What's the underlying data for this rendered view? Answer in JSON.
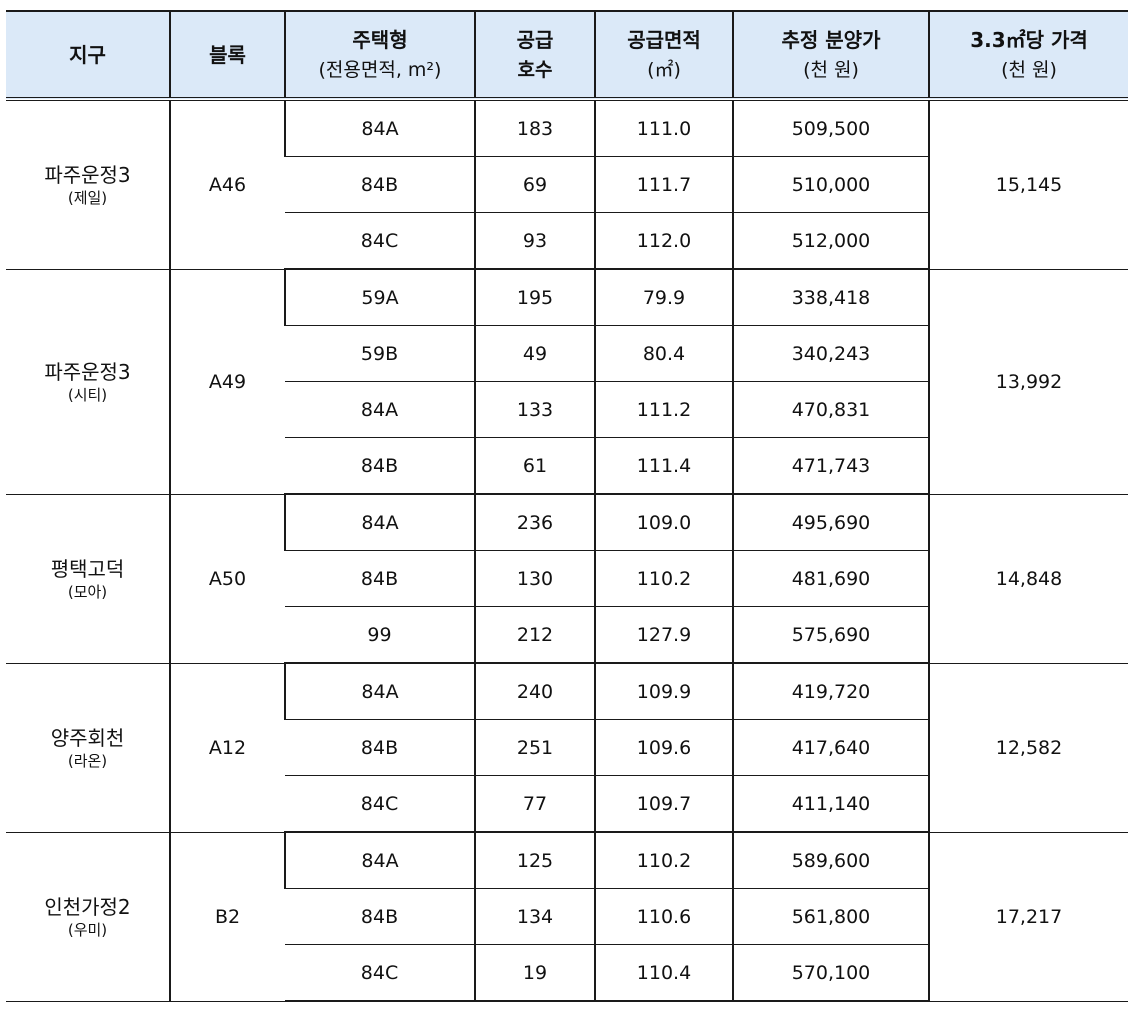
{
  "caption": "",
  "headers": {
    "district": "지구",
    "block": "블록",
    "housing_type": "주택형",
    "housing_type_sub": "(전용면적, m²)",
    "units": "공급",
    "units_sub": "호수",
    "area": "공급면적",
    "area_sub": "(㎡)",
    "price": "추정 분양가",
    "price_sub": "(천 원)",
    "per_pyeong": "3.3㎡당 가격",
    "per_pyeong_sub": "(천 원)"
  },
  "groups": [
    {
      "district": "파주운정3",
      "brand": "(제일)",
      "block": "A46",
      "per_pyeong": "15,145",
      "rows": [
        {
          "type": "84A",
          "units": "183",
          "area": "111.0",
          "price": "509,500"
        },
        {
          "type": "84B",
          "units": "69",
          "area": "111.7",
          "price": "510,000"
        },
        {
          "type": "84C",
          "units": "93",
          "area": "112.0",
          "price": "512,000"
        }
      ]
    },
    {
      "district": "파주운정3",
      "brand": "(시티)",
      "block": "A49",
      "per_pyeong": "13,992",
      "rows": [
        {
          "type": "59A",
          "units": "195",
          "area": "79.9",
          "price": "338,418"
        },
        {
          "type": "59B",
          "units": "49",
          "area": "80.4",
          "price": "340,243"
        },
        {
          "type": "84A",
          "units": "133",
          "area": "111.2",
          "price": "470,831"
        },
        {
          "type": "84B",
          "units": "61",
          "area": "111.4",
          "price": "471,743"
        }
      ]
    },
    {
      "district": "평택고덕",
      "brand": "(모아)",
      "block": "A50",
      "per_pyeong": "14,848",
      "rows": [
        {
          "type": "84A",
          "units": "236",
          "area": "109.0",
          "price": "495,690"
        },
        {
          "type": "84B",
          "units": "130",
          "area": "110.2",
          "price": "481,690"
        },
        {
          "type": "99",
          "units": "212",
          "area": "127.9",
          "price": "575,690"
        }
      ]
    },
    {
      "district": "양주회천",
      "brand": "(라온)",
      "block": "A12",
      "per_pyeong": "12,582",
      "rows": [
        {
          "type": "84A",
          "units": "240",
          "area": "109.9",
          "price": "419,720"
        },
        {
          "type": "84B",
          "units": "251",
          "area": "109.6",
          "price": "417,640"
        },
        {
          "type": "84C",
          "units": "77",
          "area": "109.7",
          "price": "411,140"
        }
      ]
    },
    {
      "district": "인천가정2",
      "brand": "(우미)",
      "block": "B2",
      "per_pyeong": "17,217",
      "rows": [
        {
          "type": "84A",
          "units": "125",
          "area": "110.2",
          "price": "589,600"
        },
        {
          "type": "84B",
          "units": "134",
          "area": "110.6",
          "price": "561,800"
        },
        {
          "type": "84C",
          "units": "19",
          "area": "110.4",
          "price": "570,100"
        }
      ]
    }
  ]
}
